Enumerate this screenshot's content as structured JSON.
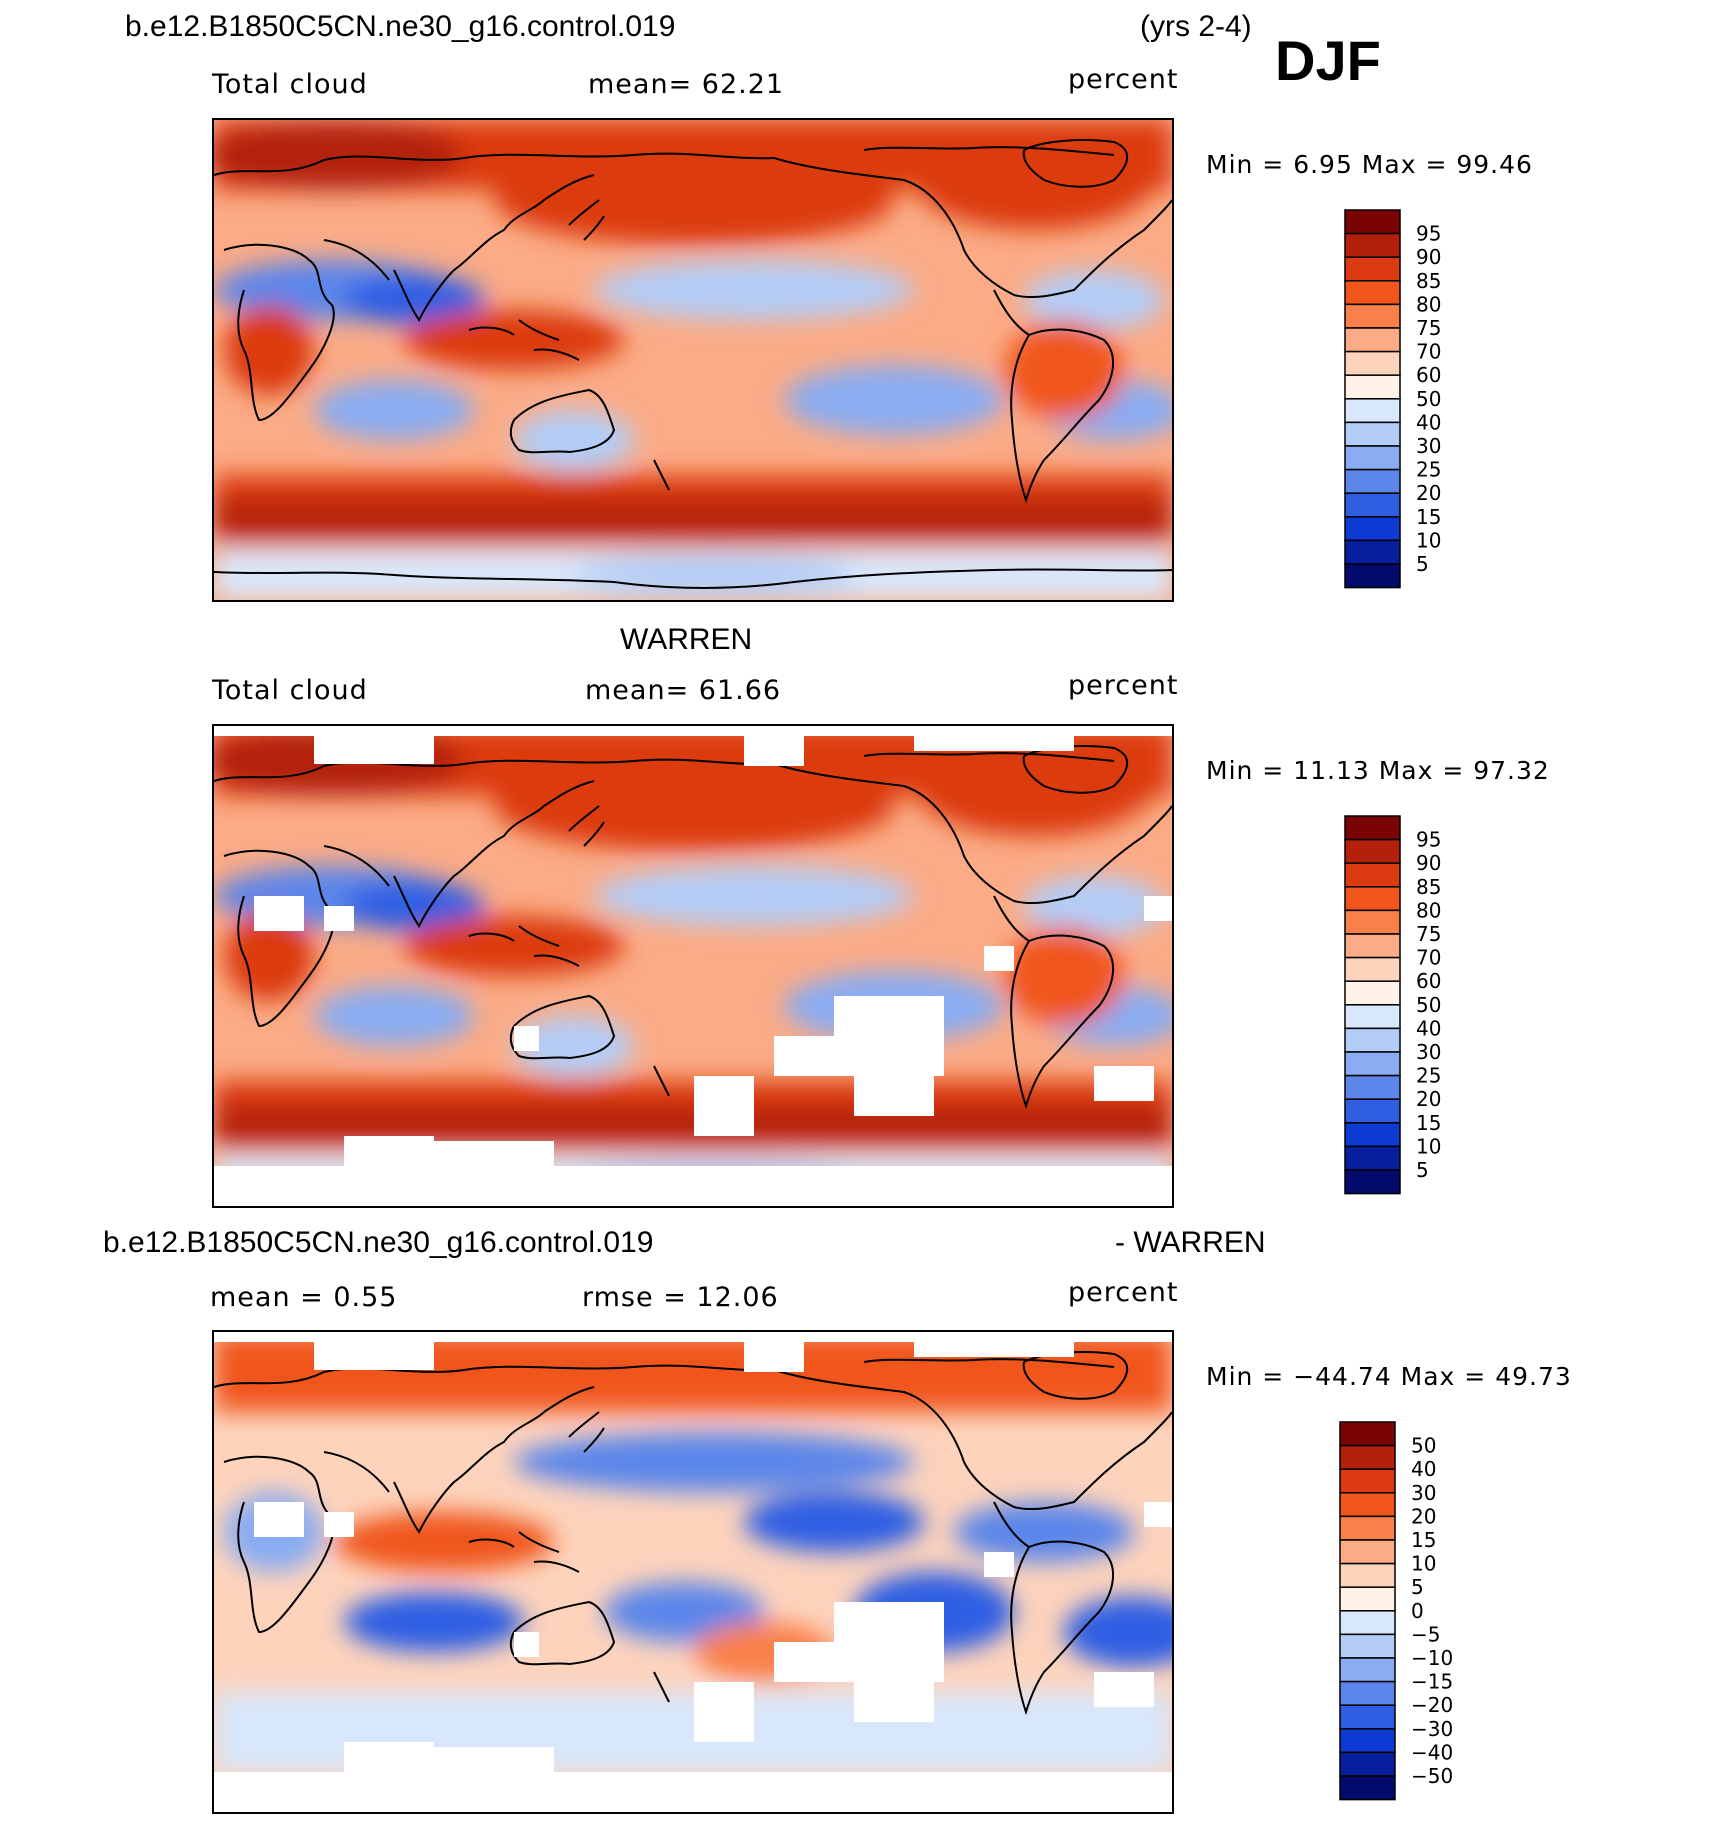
{
  "header": {
    "case_name": "b.e12.B1850C5CN.ne30_g16.control.019",
    "years": "(yrs 2-4)",
    "season": "DJF"
  },
  "panels": [
    {
      "left_label": "Total cloud",
      "center_label": "mean=   62.21",
      "right_label": "percent",
      "minmax": "Min =     6.95  Max =    99.46",
      "levels": [
        "95",
        "90",
        "85",
        "80",
        "75",
        "70",
        "60",
        "50",
        "40",
        "30",
        "25",
        "20",
        "15",
        "10",
        "5"
      ],
      "observed_mask": false
    },
    {
      "title": "WARREN",
      "left_label": "Total cloud",
      "center_label": "mean=   61.66",
      "right_label": "percent",
      "minmax": "Min =   11.13  Max =    97.32",
      "levels": [
        "95",
        "90",
        "85",
        "80",
        "75",
        "70",
        "60",
        "50",
        "40",
        "30",
        "25",
        "20",
        "15",
        "10",
        "5"
      ],
      "observed_mask": true
    },
    {
      "title_left": "b.e12.B1850C5CN.ne30_g16.control.019",
      "title_right": "- WARREN",
      "left_label": "mean =     0.55",
      "center_label": "rmse =    12.06",
      "right_label": "percent",
      "minmax": "Min = −44.74  Max =    49.73",
      "levels": [
        "50",
        "40",
        "30",
        "20",
        "15",
        "10",
        "5",
        "0",
        "−5",
        "−10",
        "−15",
        "−20",
        "−30",
        "−40",
        "−50"
      ],
      "observed_mask": true
    }
  ],
  "colors": {
    "fills": [
      "#7a0403",
      "#b3200b",
      "#dc3a10",
      "#f0561c",
      "#f9804a",
      "#fbab86",
      "#fdd3bc",
      "#fff2e6",
      "#d8e7fb",
      "#b3cdf7",
      "#89acf2",
      "#5c86ea",
      "#2f5ee3",
      "#0c3ad2",
      "#071e9f",
      "#020b6b"
    ],
    "coast": "#000000",
    "missing": "#ffffff"
  }
}
